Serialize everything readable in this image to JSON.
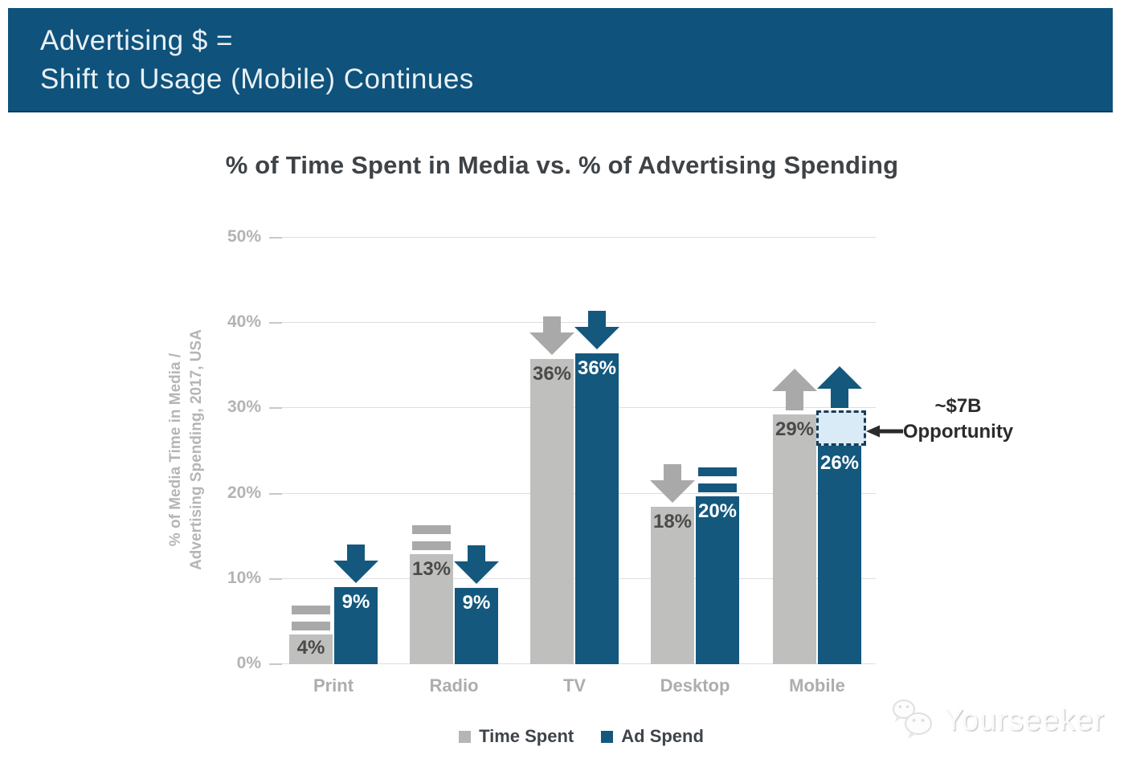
{
  "banner": {
    "line1": "Advertising $ =",
    "line2": "Shift to Usage (Mobile) Continues",
    "bg_color": "#0f527b",
    "text_color": "#e9f1f6"
  },
  "chart_data": {
    "type": "bar",
    "title": "% of Time Spent in Media vs. % of Advertising Spending",
    "ylabel_line1": "% of Media Time in Media /",
    "ylabel_line2": "Advertising Spending, 2017, USA",
    "categories": [
      "Print",
      "Radio",
      "TV",
      "Desktop",
      "Mobile"
    ],
    "series": [
      {
        "name": "Time Spent",
        "color": "#bfbfbd",
        "label_color": "#4a4a4a",
        "icon_color": "#a9a9a9",
        "values": [
          4,
          13,
          36,
          18,
          29
        ],
        "labels": [
          "4%",
          "13%",
          "36%",
          "18%",
          "29%"
        ],
        "trends": [
          "equal",
          "equal",
          "down",
          "down",
          "up"
        ]
      },
      {
        "name": "Ad Spend",
        "color": "#14587e",
        "label_color": "#ffffff",
        "icon_color": "#14587e",
        "values": [
          9,
          9,
          36,
          20,
          26
        ],
        "labels": [
          "9%",
          "9%",
          "36%",
          "20%",
          "26%"
        ],
        "trends": [
          "down",
          "down",
          "down",
          "equal",
          "up"
        ]
      }
    ],
    "ylim": [
      0,
      50
    ],
    "ytick_step": 10,
    "yticks": [
      "0%",
      "10%",
      "20%",
      "30%",
      "40%",
      "50%"
    ],
    "grid": true,
    "legend_position": "bottom",
    "opportunity_gap": {
      "category": "Mobile",
      "series": "Ad Spend",
      "from_pct": 26,
      "to_pct": 29.5,
      "fill": "#d9ebf7",
      "border": "#1c3b57"
    },
    "annotation": {
      "line1": "~$7B",
      "line2": "Opportunity"
    }
  },
  "render_hints": {
    "display_heights": [
      [
        3.5,
        12.9,
        35.8,
        18.5,
        29.3
      ],
      [
        9.0,
        8.9,
        36.4,
        19.7,
        25.6
      ]
    ],
    "gap_display": {
      "from": 25.6,
      "to": 29.6
    }
  },
  "watermark": {
    "text": "Yourseeker"
  }
}
